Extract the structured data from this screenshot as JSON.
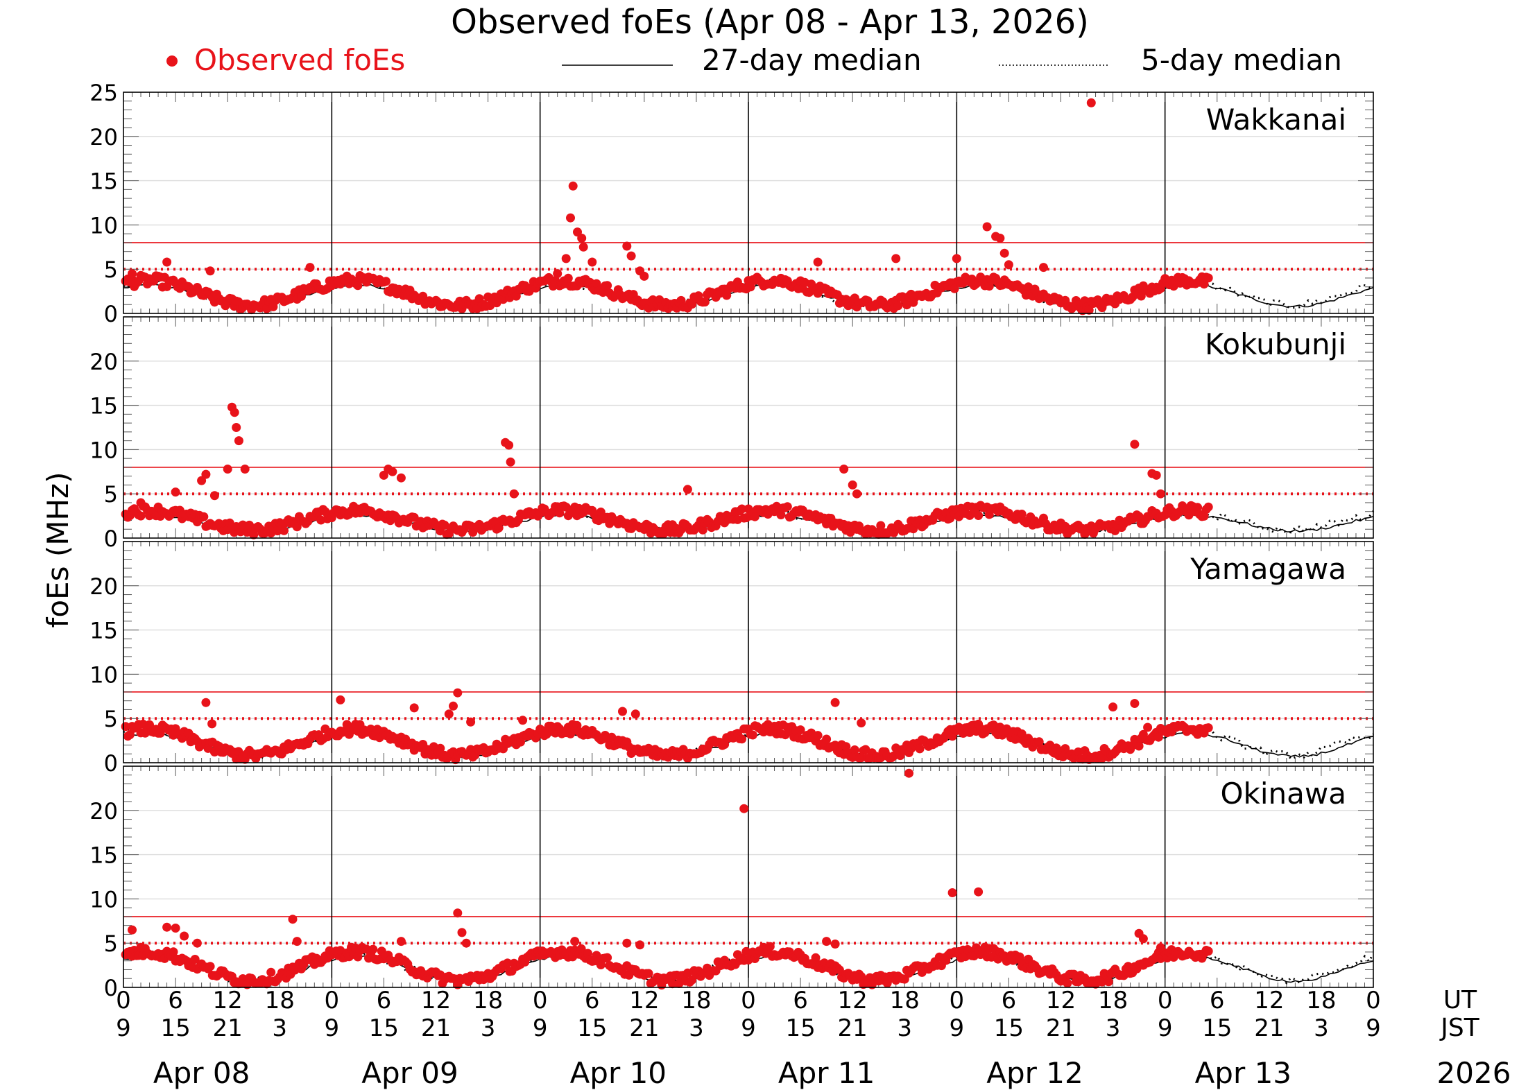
{
  "chart_data": {
    "type": "scatter",
    "title": "Observed foEs (Apr 08 - Apr 13, 2026)",
    "legend": {
      "placement": "top",
      "entries": [
        {
          "label": "Observed foEs",
          "style": "red-dot",
          "color": "#e8131a"
        },
        {
          "label": "27-day median",
          "style": "solid-line",
          "color": "#000000"
        },
        {
          "label": "5-day median",
          "style": "dotted-line",
          "color": "#000000"
        }
      ]
    },
    "ylabel": "foEs (MHz)",
    "ylim": [
      0,
      25
    ],
    "y_ticks_top_panel": [
      "0",
      "5",
      "10",
      "15",
      "20",
      "25"
    ],
    "y_ticks_other_panels": [
      "0",
      "5",
      "10",
      "15",
      "20"
    ],
    "reference_lines": [
      {
        "value": 8,
        "style": "solid",
        "color": "#e8131a"
      },
      {
        "value": 5,
        "style": "dotted",
        "color": "#e8131a"
      }
    ],
    "x_tick_ut": [
      "0",
      "6",
      "12",
      "18"
    ],
    "x_tick_jst": [
      "9",
      "15",
      "21",
      "3"
    ],
    "x_end_tick_ut": "0",
    "x_end_tick_jst": "9",
    "ut_label": "UT",
    "jst_label": "JST",
    "days": [
      "Apr 08",
      "Apr 09",
      "Apr 10",
      "Apr 11",
      "Apr 12",
      "Apr 13"
    ],
    "year": "2026",
    "grid": true,
    "observed_end_hours": 125,
    "panels": [
      {
        "name": "Wakkanai",
        "base_amp": 1.4,
        "base_offset": 2.2,
        "median_amp": 1.2,
        "median_offset": 2.0,
        "outliers": [
          [
            1,
            4.5
          ],
          [
            5,
            5.8
          ],
          [
            10,
            4.8
          ],
          [
            21.5,
            5.2
          ],
          [
            50,
            4.5
          ],
          [
            51,
            6.2
          ],
          [
            51.5,
            10.8
          ],
          [
            51.8,
            14.4
          ],
          [
            52.3,
            9.2
          ],
          [
            52.8,
            8.5
          ],
          [
            53,
            7.5
          ],
          [
            54,
            5.8
          ],
          [
            58,
            7.6
          ],
          [
            58.5,
            6.5
          ],
          [
            59.5,
            4.8
          ],
          [
            60,
            4.2
          ],
          [
            80,
            5.8
          ],
          [
            89,
            6.2
          ],
          [
            96,
            6.2
          ],
          [
            99.5,
            9.8
          ],
          [
            100.5,
            8.7
          ],
          [
            101,
            8.5
          ],
          [
            101.5,
            6.8
          ],
          [
            102,
            5.5
          ],
          [
            106,
            5.2
          ],
          [
            111.5,
            23.8
          ]
        ]
      },
      {
        "name": "Kokubunji",
        "base_amp": 1.1,
        "base_offset": 1.9,
        "median_amp": 0.9,
        "median_offset": 1.7,
        "outliers": [
          [
            2,
            4.0
          ],
          [
            6,
            5.2
          ],
          [
            9,
            6.5
          ],
          [
            9.5,
            7.2
          ],
          [
            10.5,
            4.8
          ],
          [
            12,
            7.8
          ],
          [
            12.5,
            14.8
          ],
          [
            12.8,
            14.2
          ],
          [
            13,
            12.5
          ],
          [
            13.3,
            11.0
          ],
          [
            14,
            7.8
          ],
          [
            30,
            7.1
          ],
          [
            30.5,
            7.8
          ],
          [
            31,
            7.5
          ],
          [
            32,
            6.8
          ],
          [
            44,
            10.8
          ],
          [
            44.4,
            10.5
          ],
          [
            44.6,
            8.6
          ],
          [
            45,
            5.0
          ],
          [
            65,
            5.5
          ],
          [
            83,
            7.8
          ],
          [
            84,
            6.0
          ],
          [
            84.5,
            5.0
          ],
          [
            116.5,
            10.6
          ],
          [
            118.5,
            7.3
          ],
          [
            119,
            7.1
          ],
          [
            119.5,
            5.0
          ]
        ]
      },
      {
        "name": "Yamagawa",
        "base_amp": 1.5,
        "base_offset": 2.2,
        "median_amp": 1.3,
        "median_offset": 2.0,
        "outliers": [
          [
            9.5,
            6.8
          ],
          [
            10.2,
            4.4
          ],
          [
            25,
            7.1
          ],
          [
            33.5,
            6.2
          ],
          [
            37.5,
            5.5
          ],
          [
            38,
            6.4
          ],
          [
            38.5,
            7.9
          ],
          [
            40,
            4.6
          ],
          [
            46,
            4.8
          ],
          [
            57.5,
            5.8
          ],
          [
            59,
            5.5
          ],
          [
            82,
            6.8
          ],
          [
            85,
            4.5
          ],
          [
            114,
            6.3
          ],
          [
            116.5,
            6.7
          ],
          [
            118,
            4.0
          ]
        ]
      },
      {
        "name": "Okinawa",
        "base_amp": 1.6,
        "base_offset": 2.3,
        "median_amp": 1.4,
        "median_offset": 2.1,
        "outliers": [
          [
            1,
            6.5
          ],
          [
            5,
            6.8
          ],
          [
            6,
            6.7
          ],
          [
            7,
            5.8
          ],
          [
            8.5,
            5.0
          ],
          [
            19.5,
            7.7
          ],
          [
            20,
            5.2
          ],
          [
            32,
            5.2
          ],
          [
            38.5,
            8.4
          ],
          [
            39,
            6.2
          ],
          [
            39.5,
            5.0
          ],
          [
            52,
            5.2
          ],
          [
            58,
            5.0
          ],
          [
            59.5,
            4.8
          ],
          [
            71.5,
            20.2
          ],
          [
            81,
            5.2
          ],
          [
            82,
            4.9
          ],
          [
            90.5,
            24.2
          ],
          [
            95.5,
            10.7
          ],
          [
            98.5,
            10.8
          ],
          [
            117,
            6.1
          ],
          [
            117.5,
            5.5
          ],
          [
            119.5,
            4.5
          ]
        ]
      }
    ]
  }
}
